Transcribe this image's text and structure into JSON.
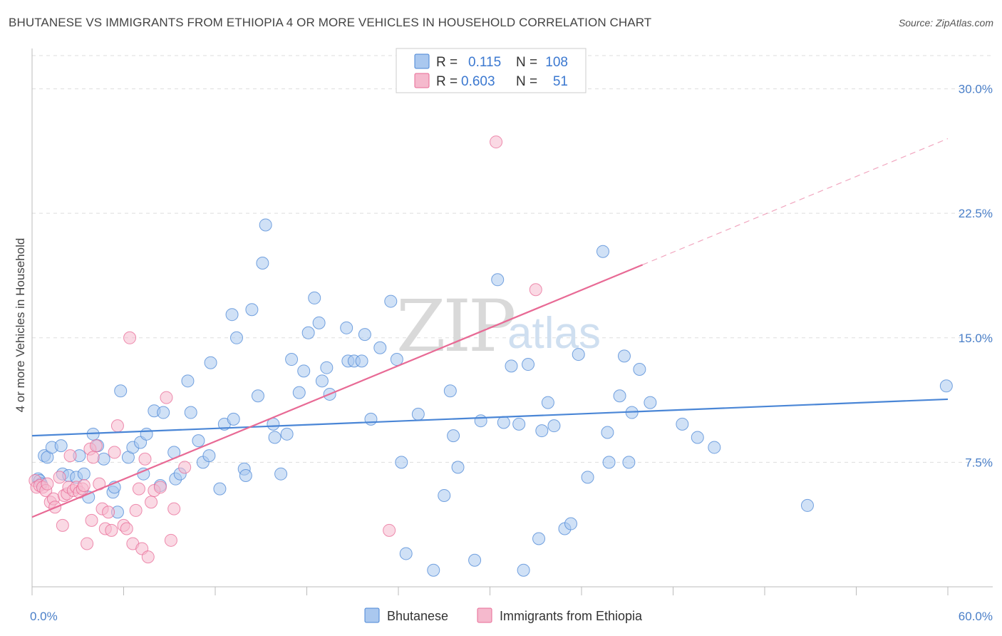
{
  "title": "BHUTANESE VS IMMIGRANTS FROM ETHIOPIA 4 OR MORE VEHICLES IN HOUSEHOLD CORRELATION CHART",
  "source": "Source: ZipAtlas.com",
  "watermark": {
    "zip": "ZIP",
    "atlas": "atlas"
  },
  "colors": {
    "blue": "#4a86d6",
    "blue_fill": "#aac8ef",
    "pink": "#e86a95",
    "pink_fill": "#f5b9cd",
    "grid": "#dddddd"
  },
  "legend": {
    "rows": [
      {
        "r_label": "R =",
        "r_value": "0.115",
        "n_label": "N =",
        "n_value": "108"
      },
      {
        "r_label": "R =",
        "r_value": "0.603",
        "n_label": "N =",
        "n_value": "51"
      }
    ]
  },
  "chart_data": {
    "type": "scatter",
    "title": "BHUTANESE VS IMMIGRANTS FROM ETHIOPIA 4 OR MORE VEHICLES IN HOUSEHOLD CORRELATION CHART",
    "xlabel": "",
    "ylabel": "4 or more Vehicles in Household",
    "xlim": [
      0,
      60
    ],
    "ylim": [
      0,
      32
    ],
    "x_tick_labels": [
      "0.0%",
      "60.0%"
    ],
    "y_ticks": [
      7.5,
      15.0,
      22.5,
      30.0
    ],
    "y_tick_labels": [
      "7.5%",
      "15.0%",
      "22.5%",
      "30.0%"
    ],
    "legend_position": "top-center",
    "series": [
      {
        "name": "Bhutanese",
        "color": "#4a86d6",
        "trend": {
          "x": [
            0,
            60
          ],
          "y": [
            9.1,
            11.3
          ],
          "style": "solid"
        },
        "points": [
          [
            0.4,
            6.5
          ],
          [
            0.5,
            6.4
          ],
          [
            0.6,
            6.2
          ],
          [
            0.8,
            7.9
          ],
          [
            1.0,
            7.8
          ],
          [
            1.3,
            8.4
          ],
          [
            1.9,
            8.5
          ],
          [
            2.0,
            6.8
          ],
          [
            2.4,
            6.7
          ],
          [
            2.9,
            6.6
          ],
          [
            3.1,
            7.9
          ],
          [
            3.4,
            6.8
          ],
          [
            3.7,
            5.4
          ],
          [
            4.0,
            9.2
          ],
          [
            4.3,
            8.5
          ],
          [
            4.7,
            7.7
          ],
          [
            5.3,
            5.7
          ],
          [
            5.4,
            6.0
          ],
          [
            5.6,
            4.5
          ],
          [
            5.8,
            11.8
          ],
          [
            6.3,
            7.8
          ],
          [
            6.6,
            8.4
          ],
          [
            7.1,
            8.7
          ],
          [
            7.3,
            6.8
          ],
          [
            7.5,
            9.2
          ],
          [
            8.0,
            10.6
          ],
          [
            8.4,
            6.1
          ],
          [
            8.6,
            10.5
          ],
          [
            9.3,
            8.1
          ],
          [
            9.4,
            6.5
          ],
          [
            9.7,
            6.8
          ],
          [
            10.2,
            12.4
          ],
          [
            10.4,
            10.5
          ],
          [
            10.9,
            8.8
          ],
          [
            11.2,
            7.5
          ],
          [
            11.6,
            7.9
          ],
          [
            11.7,
            13.5
          ],
          [
            12.3,
            5.9
          ],
          [
            12.6,
            9.8
          ],
          [
            13.1,
            16.4
          ],
          [
            13.2,
            10.1
          ],
          [
            13.4,
            15.0
          ],
          [
            13.9,
            7.1
          ],
          [
            14.0,
            6.7
          ],
          [
            14.4,
            16.7
          ],
          [
            14.8,
            11.5
          ],
          [
            15.1,
            19.5
          ],
          [
            15.3,
            21.8
          ],
          [
            15.8,
            9.8
          ],
          [
            15.9,
            9.0
          ],
          [
            16.3,
            6.8
          ],
          [
            16.7,
            9.2
          ],
          [
            17.0,
            13.7
          ],
          [
            17.5,
            11.7
          ],
          [
            17.8,
            13.0
          ],
          [
            18.1,
            15.3
          ],
          [
            18.5,
            17.4
          ],
          [
            18.8,
            15.9
          ],
          [
            19.0,
            12.4
          ],
          [
            19.3,
            13.2
          ],
          [
            19.5,
            11.6
          ],
          [
            20.6,
            15.6
          ],
          [
            20.7,
            13.6
          ],
          [
            21.1,
            13.6
          ],
          [
            21.6,
            13.6
          ],
          [
            21.8,
            15.2
          ],
          [
            22.2,
            10.1
          ],
          [
            22.8,
            14.4
          ],
          [
            23.5,
            17.2
          ],
          [
            23.9,
            13.7
          ],
          [
            24.2,
            7.5
          ],
          [
            24.5,
            2.0
          ],
          [
            25.3,
            10.4
          ],
          [
            26.3,
            1.0
          ],
          [
            27.0,
            5.5
          ],
          [
            27.4,
            11.8
          ],
          [
            27.6,
            9.1
          ],
          [
            27.9,
            7.2
          ],
          [
            29.0,
            1.6
          ],
          [
            29.4,
            10.0
          ],
          [
            30.5,
            18.5
          ],
          [
            30.9,
            9.9
          ],
          [
            31.4,
            13.3
          ],
          [
            31.9,
            9.8
          ],
          [
            32.2,
            1.0
          ],
          [
            32.5,
            13.4
          ],
          [
            33.2,
            2.9
          ],
          [
            33.4,
            9.4
          ],
          [
            33.8,
            11.1
          ],
          [
            34.2,
            9.7
          ],
          [
            34.9,
            3.5
          ],
          [
            35.3,
            3.8
          ],
          [
            35.8,
            14.0
          ],
          [
            36.4,
            6.6
          ],
          [
            37.4,
            20.2
          ],
          [
            37.7,
            9.3
          ],
          [
            37.8,
            7.5
          ],
          [
            38.5,
            11.5
          ],
          [
            38.8,
            13.9
          ],
          [
            39.1,
            7.5
          ],
          [
            39.3,
            10.5
          ],
          [
            39.8,
            13.1
          ],
          [
            40.5,
            11.1
          ],
          [
            42.6,
            9.8
          ],
          [
            43.6,
            9.0
          ],
          [
            44.7,
            8.4
          ],
          [
            50.8,
            4.9
          ],
          [
            59.9,
            12.1
          ]
        ]
      },
      {
        "name": "Immigrants from Ethiopia",
        "color": "#e86a95",
        "trend": {
          "x": [
            0,
            40
          ],
          "y": [
            4.2,
            19.4
          ],
          "style": "solid",
          "extend_to": [
            60,
            27.0
          ],
          "extend_style": "dashed"
        },
        "points": [
          [
            0.2,
            6.4
          ],
          [
            0.3,
            6.0
          ],
          [
            0.5,
            6.1
          ],
          [
            0.7,
            6.0
          ],
          [
            0.9,
            5.8
          ],
          [
            1.0,
            6.2
          ],
          [
            1.2,
            5.1
          ],
          [
            1.4,
            5.3
          ],
          [
            1.5,
            4.8
          ],
          [
            1.8,
            6.6
          ],
          [
            2.1,
            5.5
          ],
          [
            2.3,
            5.6
          ],
          [
            2.4,
            6.0
          ],
          [
            2.5,
            7.9
          ],
          [
            2.7,
            5.8
          ],
          [
            2.9,
            6.0
          ],
          [
            3.1,
            5.7
          ],
          [
            3.3,
            5.9
          ],
          [
            3.4,
            6.1
          ],
          [
            3.6,
            2.6
          ],
          [
            3.8,
            8.3
          ],
          [
            3.9,
            4.0
          ],
          [
            4.0,
            7.8
          ],
          [
            4.2,
            8.5
          ],
          [
            4.4,
            6.2
          ],
          [
            4.6,
            4.7
          ],
          [
            4.8,
            3.5
          ],
          [
            5.0,
            4.5
          ],
          [
            5.2,
            3.4
          ],
          [
            5.4,
            8.1
          ],
          [
            5.6,
            9.7
          ],
          [
            6.0,
            3.7
          ],
          [
            6.2,
            3.5
          ],
          [
            6.4,
            15.0
          ],
          [
            6.6,
            2.6
          ],
          [
            6.8,
            4.6
          ],
          [
            7.0,
            5.9
          ],
          [
            7.2,
            2.3
          ],
          [
            7.4,
            7.7
          ],
          [
            7.6,
            1.8
          ],
          [
            7.8,
            5.1
          ],
          [
            8.0,
            5.8
          ],
          [
            8.4,
            6.0
          ],
          [
            8.8,
            11.4
          ],
          [
            9.1,
            2.8
          ],
          [
            9.3,
            4.7
          ],
          [
            10.0,
            7.2
          ],
          [
            23.4,
            3.4
          ],
          [
            30.4,
            26.8
          ],
          [
            33.0,
            17.9
          ],
          [
            2.0,
            3.7
          ]
        ]
      }
    ]
  },
  "bottom_legend": [
    {
      "label": "Bhutanese"
    },
    {
      "label": "Immigrants from Ethiopia"
    }
  ]
}
